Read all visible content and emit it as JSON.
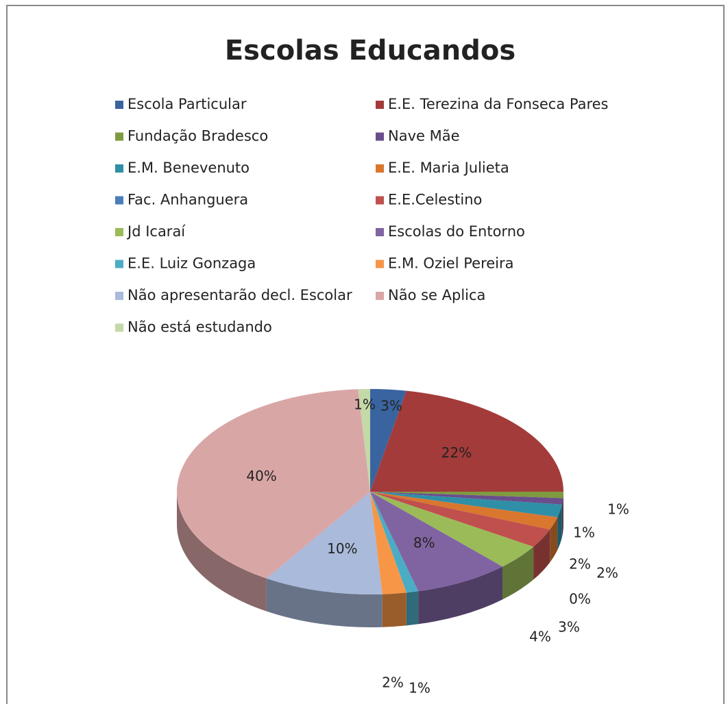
{
  "chart_data": {
    "type": "pie",
    "title": "Escolas Educandos",
    "categories": [
      "Escola Particular",
      "E.E. Terezina da Fonseca Pares",
      "Fundação Bradesco",
      "Nave Mãe",
      "E.M. Benevenuto",
      "E.E. Maria Julieta",
      "Fac. Anhanguera",
      "E.E.Celestino",
      "Jd Icaraí",
      "Escolas do Entorno",
      "E.E. Luiz Gonzaga",
      "E.M. Oziel Pereira",
      "Não apresentarão decl. Escolar",
      "Não se Aplica",
      "Não está estudando"
    ],
    "values": [
      3,
      22,
      1,
      1,
      2,
      2,
      0,
      3,
      4,
      8,
      1,
      2,
      10,
      40,
      1
    ],
    "colors": [
      "#3A64A0",
      "#A33B3A",
      "#7F9A3F",
      "#6A4E8C",
      "#2F8FA6",
      "#D9772E",
      "#4A7EBB",
      "#C0504D",
      "#9BBB59",
      "#8064A2",
      "#4BACC6",
      "#F79646",
      "#A9BADB",
      "#D9A6A6",
      "#C4D9A8"
    ],
    "value_labels": [
      "3%",
      "22%",
      "1%",
      "1%",
      "2%",
      "2%",
      "0%",
      "3%",
      "4%",
      "8%",
      "1%",
      "2%",
      "10%",
      "40%",
      "1%"
    ],
    "legend": "top"
  }
}
